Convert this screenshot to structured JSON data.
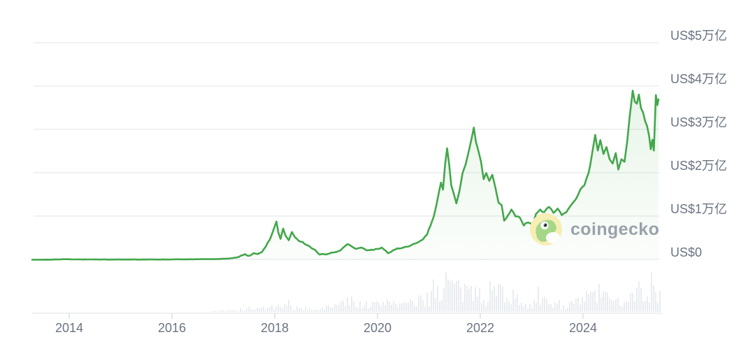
{
  "watermark": {
    "brand": "coingecko"
  },
  "colors": {
    "line": "#43a74b",
    "fill": "#4caf50",
    "volume_bar": "#e9ecf0",
    "grid": "#f0f1f3",
    "axis_label": "#6b7483",
    "watermark_text": "#99a1ab",
    "logo_circle": "#f6eeb5",
    "logo_body": "#a6d688",
    "logo_pupil": "#2b343b"
  },
  "chart_data": {
    "type": "area",
    "x_ticks": [
      "2014",
      "2016",
      "2018",
      "2020",
      "2022",
      "2024"
    ],
    "x_tick_years": [
      2014,
      2016,
      2018,
      2020,
      2022,
      2024
    ],
    "y_ticks": [
      "US$5万亿",
      "US$4万亿",
      "US$3万亿",
      "US$2万亿",
      "US$1万亿",
      "US$0"
    ],
    "y_tick_values": [
      5,
      4,
      3,
      2,
      1,
      0
    ],
    "x_range": [
      2013.28,
      2025.46
    ],
    "ylim": [
      0,
      5.75
    ],
    "unit_note": "value axis in 万亿 US$ (trillions USD)",
    "grid": true,
    "legend": false,
    "series": [
      {
        "name": "total_crypto_market_cap",
        "points": [
          [
            2013.28,
            0.001
          ],
          [
            2013.6,
            0.002
          ],
          [
            2013.92,
            0.013
          ],
          [
            2014.1,
            0.008
          ],
          [
            2014.5,
            0.006
          ],
          [
            2015.0,
            0.005
          ],
          [
            2015.5,
            0.005
          ],
          [
            2016.0,
            0.008
          ],
          [
            2016.5,
            0.013
          ],
          [
            2016.9,
            0.017
          ],
          [
            2017.1,
            0.027
          ],
          [
            2017.25,
            0.05
          ],
          [
            2017.35,
            0.1
          ],
          [
            2017.42,
            0.13
          ],
          [
            2017.5,
            0.09
          ],
          [
            2017.58,
            0.15
          ],
          [
            2017.66,
            0.13
          ],
          [
            2017.75,
            0.18
          ],
          [
            2017.82,
            0.3
          ],
          [
            2017.9,
            0.46
          ],
          [
            2017.97,
            0.68
          ],
          [
            2018.03,
            0.88
          ],
          [
            2018.07,
            0.62
          ],
          [
            2018.11,
            0.48
          ],
          [
            2018.16,
            0.72
          ],
          [
            2018.21,
            0.55
          ],
          [
            2018.27,
            0.45
          ],
          [
            2018.33,
            0.64
          ],
          [
            2018.39,
            0.52
          ],
          [
            2018.46,
            0.44
          ],
          [
            2018.54,
            0.41
          ],
          [
            2018.62,
            0.34
          ],
          [
            2018.71,
            0.27
          ],
          [
            2018.79,
            0.22
          ],
          [
            2018.87,
            0.12
          ],
          [
            2018.95,
            0.13
          ],
          [
            2019.05,
            0.14
          ],
          [
            2019.15,
            0.17
          ],
          [
            2019.28,
            0.22
          ],
          [
            2019.41,
            0.36
          ],
          [
            2019.49,
            0.31
          ],
          [
            2019.58,
            0.25
          ],
          [
            2019.68,
            0.28
          ],
          [
            2019.78,
            0.22
          ],
          [
            2019.88,
            0.23
          ],
          [
            2020.0,
            0.25
          ],
          [
            2020.08,
            0.28
          ],
          [
            2020.2,
            0.15
          ],
          [
            2020.3,
            0.22
          ],
          [
            2020.42,
            0.26
          ],
          [
            2020.54,
            0.3
          ],
          [
            2020.66,
            0.34
          ],
          [
            2020.78,
            0.4
          ],
          [
            2020.88,
            0.47
          ],
          [
            2020.96,
            0.58
          ],
          [
            2021.03,
            0.8
          ],
          [
            2021.09,
            1.0
          ],
          [
            2021.14,
            1.25
          ],
          [
            2021.19,
            1.55
          ],
          [
            2021.23,
            1.78
          ],
          [
            2021.27,
            1.62
          ],
          [
            2021.31,
            2.2
          ],
          [
            2021.35,
            2.57
          ],
          [
            2021.39,
            2.2
          ],
          [
            2021.43,
            1.72
          ],
          [
            2021.48,
            1.52
          ],
          [
            2021.53,
            1.3
          ],
          [
            2021.59,
            1.58
          ],
          [
            2021.65,
            2.0
          ],
          [
            2021.71,
            2.2
          ],
          [
            2021.77,
            2.5
          ],
          [
            2021.83,
            2.82
          ],
          [
            2021.87,
            3.05
          ],
          [
            2021.91,
            2.72
          ],
          [
            2021.96,
            2.5
          ],
          [
            2022.01,
            2.26
          ],
          [
            2022.06,
            1.86
          ],
          [
            2022.11,
            2.0
          ],
          [
            2022.17,
            1.82
          ],
          [
            2022.23,
            1.96
          ],
          [
            2022.29,
            1.66
          ],
          [
            2022.35,
            1.32
          ],
          [
            2022.41,
            1.26
          ],
          [
            2022.46,
            0.9
          ],
          [
            2022.53,
            1.02
          ],
          [
            2022.6,
            1.16
          ],
          [
            2022.68,
            1.0
          ],
          [
            2022.76,
            0.98
          ],
          [
            2022.84,
            0.79
          ],
          [
            2022.92,
            0.86
          ],
          [
            2023.0,
            0.81
          ],
          [
            2023.08,
            1.06
          ],
          [
            2023.16,
            1.16
          ],
          [
            2023.24,
            1.1
          ],
          [
            2023.33,
            1.22
          ],
          [
            2023.42,
            1.08
          ],
          [
            2023.5,
            1.18
          ],
          [
            2023.58,
            1.03
          ],
          [
            2023.67,
            1.1
          ],
          [
            2023.76,
            1.26
          ],
          [
            2023.85,
            1.39
          ],
          [
            2023.94,
            1.62
          ],
          [
            2024.02,
            1.72
          ],
          [
            2024.1,
            2.0
          ],
          [
            2024.17,
            2.45
          ],
          [
            2024.23,
            2.88
          ],
          [
            2024.28,
            2.52
          ],
          [
            2024.33,
            2.76
          ],
          [
            2024.39,
            2.44
          ],
          [
            2024.45,
            2.6
          ],
          [
            2024.51,
            2.32
          ],
          [
            2024.57,
            2.22
          ],
          [
            2024.63,
            2.46
          ],
          [
            2024.68,
            2.08
          ],
          [
            2024.74,
            2.32
          ],
          [
            2024.8,
            2.26
          ],
          [
            2024.85,
            2.7
          ],
          [
            2024.9,
            3.3
          ],
          [
            2024.96,
            3.9
          ],
          [
            2025.0,
            3.65
          ],
          [
            2025.04,
            3.6
          ],
          [
            2025.08,
            3.81
          ],
          [
            2025.12,
            3.5
          ],
          [
            2025.16,
            3.4
          ],
          [
            2025.2,
            3.2
          ],
          [
            2025.24,
            3.08
          ],
          [
            2025.28,
            2.85
          ],
          [
            2025.31,
            2.55
          ],
          [
            2025.34,
            2.77
          ],
          [
            2025.37,
            2.52
          ],
          [
            2025.41,
            3.8
          ],
          [
            2025.44,
            3.57
          ],
          [
            2025.46,
            3.7
          ]
        ]
      }
    ],
    "volume": {
      "name": "trading_volume_background",
      "envelope": [
        [
          2013.3,
          0
        ],
        [
          2016.6,
          0.5
        ],
        [
          2017.1,
          1.5
        ],
        [
          2017.5,
          3
        ],
        [
          2017.9,
          6
        ],
        [
          2018.15,
          7
        ],
        [
          2018.5,
          4
        ],
        [
          2018.9,
          4
        ],
        [
          2019.2,
          9
        ],
        [
          2019.45,
          14
        ],
        [
          2019.8,
          9
        ],
        [
          2020.05,
          10
        ],
        [
          2020.2,
          16
        ],
        [
          2020.5,
          9
        ],
        [
          2020.8,
          13
        ],
        [
          2021.0,
          22
        ],
        [
          2021.2,
          30
        ],
        [
          2021.38,
          42
        ],
        [
          2021.5,
          32
        ],
        [
          2021.7,
          22
        ],
        [
          2021.9,
          27
        ],
        [
          2022.1,
          23
        ],
        [
          2022.35,
          28
        ],
        [
          2022.48,
          31
        ],
        [
          2022.65,
          17
        ],
        [
          2022.9,
          12
        ],
        [
          2023.1,
          12
        ],
        [
          2023.3,
          14
        ],
        [
          2023.6,
          9
        ],
        [
          2023.9,
          12
        ],
        [
          2024.1,
          19
        ],
        [
          2024.25,
          27
        ],
        [
          2024.45,
          16
        ],
        [
          2024.65,
          13
        ],
        [
          2024.85,
          19
        ],
        [
          2024.97,
          36
        ],
        [
          2025.1,
          27
        ],
        [
          2025.22,
          22
        ],
        [
          2025.33,
          31
        ],
        [
          2025.46,
          26
        ]
      ]
    }
  }
}
